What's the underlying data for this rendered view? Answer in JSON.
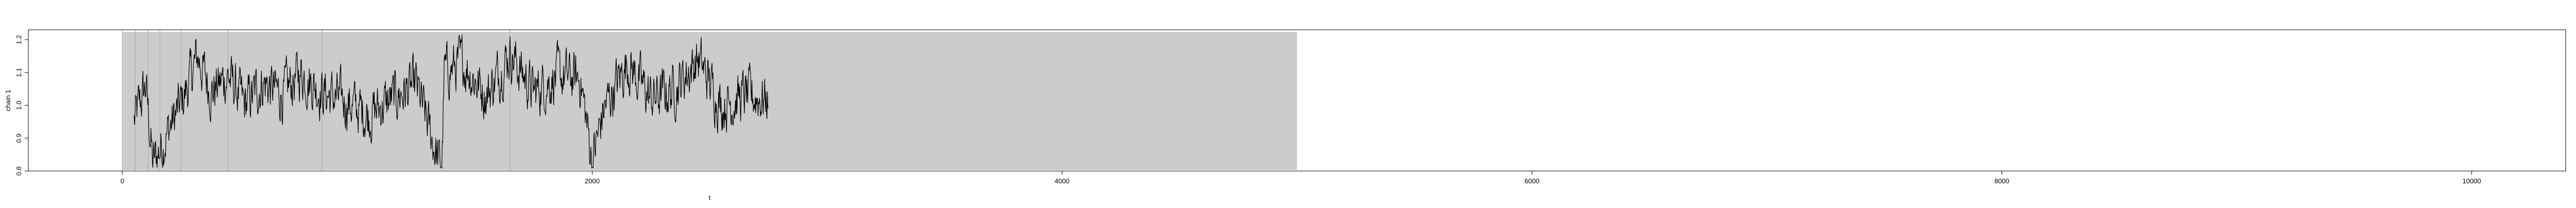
{
  "chart_data": {
    "type": "line",
    "title": "",
    "xlabel": "t",
    "ylabel": "chain 1",
    "xlim": [
      -400,
      10400
    ],
    "ylim": [
      0.8,
      1.23
    ],
    "x_ticks": [
      0,
      2000,
      4000,
      6000,
      8000,
      10000
    ],
    "x_tick_labels": [
      "0",
      "2000",
      "4000",
      "6000",
      "8000",
      "10000"
    ],
    "y_ticks": [
      0.8,
      0.9,
      1.0,
      1.1,
      1.2
    ],
    "y_tick_labels": [
      "0.8",
      "0.9",
      "1.0",
      "1.1",
      "1.2"
    ],
    "grid": false,
    "shaded_region": {
      "x_start": 0,
      "x_end": 5000,
      "color": "#cccccc"
    },
    "vertical_lines": [
      0,
      55,
      110,
      160,
      250,
      450,
      850,
      1650
    ],
    "vertical_line_color": "#b0b0b0",
    "series": [
      {
        "name": "chain 1",
        "color": "#000000",
        "x_start": 50,
        "x_end": 2750,
        "anchor_x": [
          50,
          100,
          130,
          200,
          260,
          320,
          380,
          450,
          520,
          600,
          680,
          760,
          850,
          950,
          1050,
          1150,
          1250,
          1360,
          1370,
          1450,
          1550,
          1650,
          1750,
          1850,
          1950,
          2000,
          2050,
          2150,
          2250,
          2350,
          2450,
          2550,
          2650,
          2750
        ],
        "anchor_y": [
          0.95,
          1.06,
          0.82,
          0.93,
          1.02,
          1.15,
          1.04,
          1.09,
          1.0,
          1.07,
          1.03,
          1.1,
          1.04,
          1.01,
          0.97,
          1.02,
          1.06,
          0.8,
          1.1,
          1.13,
          1.03,
          1.16,
          1.04,
          1.09,
          1.08,
          0.83,
          0.99,
          1.13,
          1.02,
          1.05,
          1.14,
          1.0,
          1.03,
          1.02
        ],
        "noise_amplitude": 0.09
      }
    ]
  }
}
